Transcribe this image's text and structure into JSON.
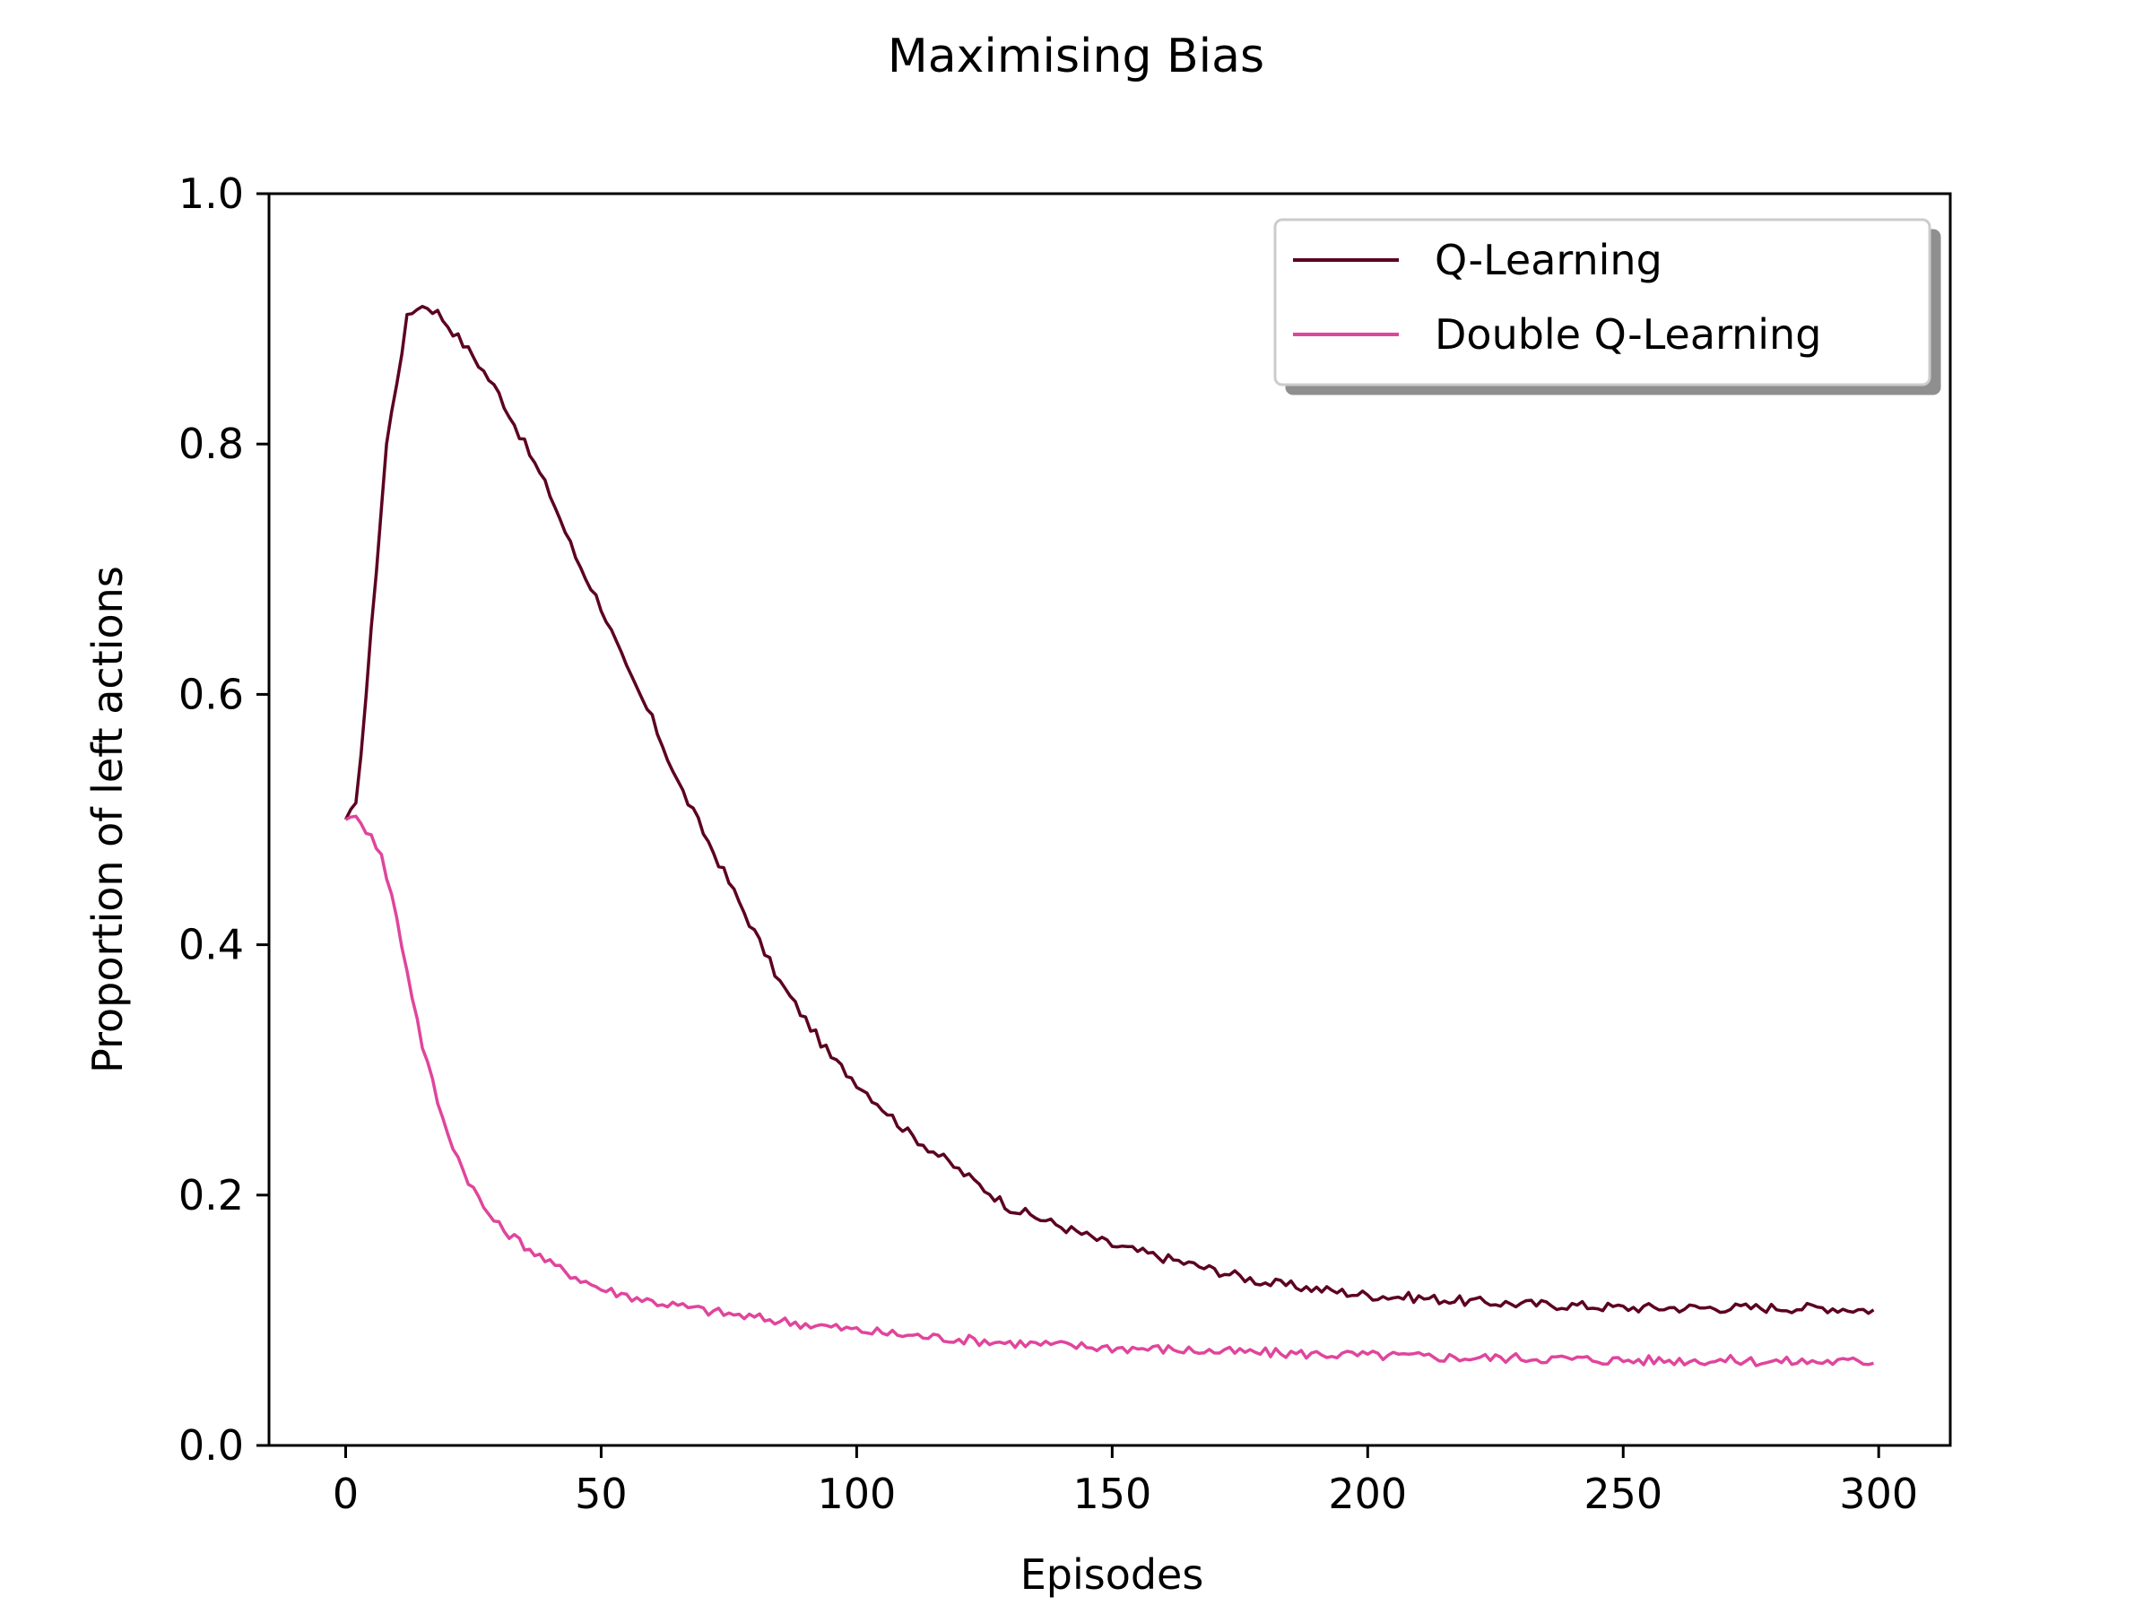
{
  "chart_data": {
    "type": "line",
    "title": "Maximising Bias",
    "xlabel": "Episodes",
    "ylabel": "Proportion of left actions",
    "xlim": [
      -15,
      314
    ],
    "ylim": [
      0.0,
      1.0
    ],
    "xticks": [
      0,
      50,
      100,
      150,
      200,
      250,
      300
    ],
    "xtick_labels": [
      "0",
      "50",
      "100",
      "150",
      "200",
      "250",
      "300"
    ],
    "yticks": [
      0.0,
      0.2,
      0.4,
      0.6,
      0.8,
      1.0
    ],
    "ytick_labels": [
      "0.0",
      "0.2",
      "0.4",
      "0.6",
      "0.8",
      "1.0"
    ],
    "grid": false,
    "legend_position": "top-right",
    "series": [
      {
        "name": "Q-Learning",
        "color": "#5c0120",
        "points": [
          [
            0,
            0.5
          ],
          [
            2,
            0.51
          ],
          [
            4,
            0.6
          ],
          [
            6,
            0.7
          ],
          [
            8,
            0.8
          ],
          [
            10,
            0.85
          ],
          [
            12,
            0.9
          ],
          [
            14,
            0.91
          ],
          [
            16,
            0.91
          ],
          [
            18,
            0.905
          ],
          [
            20,
            0.895
          ],
          [
            25,
            0.87
          ],
          [
            30,
            0.84
          ],
          [
            35,
            0.8
          ],
          [
            40,
            0.76
          ],
          [
            45,
            0.71
          ],
          [
            50,
            0.67
          ],
          [
            55,
            0.62
          ],
          [
            60,
            0.58
          ],
          [
            65,
            0.53
          ],
          [
            70,
            0.49
          ],
          [
            75,
            0.45
          ],
          [
            80,
            0.41
          ],
          [
            85,
            0.37
          ],
          [
            90,
            0.34
          ],
          [
            95,
            0.31
          ],
          [
            100,
            0.29
          ],
          [
            110,
            0.25
          ],
          [
            120,
            0.22
          ],
          [
            130,
            0.19
          ],
          [
            140,
            0.175
          ],
          [
            150,
            0.16
          ],
          [
            160,
            0.15
          ],
          [
            170,
            0.14
          ],
          [
            180,
            0.13
          ],
          [
            190,
            0.125
          ],
          [
            200,
            0.12
          ],
          [
            210,
            0.118
          ],
          [
            220,
            0.115
          ],
          [
            230,
            0.113
          ],
          [
            240,
            0.112
          ],
          [
            250,
            0.11
          ],
          [
            260,
            0.11
          ],
          [
            270,
            0.11
          ],
          [
            280,
            0.11
          ],
          [
            290,
            0.11
          ],
          [
            299,
            0.108
          ]
        ]
      },
      {
        "name": "Double Q-Learning",
        "color": "#e0459c",
        "points": [
          [
            0,
            0.5
          ],
          [
            1,
            0.505
          ],
          [
            3,
            0.495
          ],
          [
            5,
            0.49
          ],
          [
            7,
            0.47
          ],
          [
            9,
            0.44
          ],
          [
            11,
            0.4
          ],
          [
            13,
            0.36
          ],
          [
            15,
            0.32
          ],
          [
            17,
            0.29
          ],
          [
            19,
            0.26
          ],
          [
            21,
            0.24
          ],
          [
            23,
            0.22
          ],
          [
            25,
            0.205
          ],
          [
            27,
            0.19
          ],
          [
            30,
            0.175
          ],
          [
            35,
            0.16
          ],
          [
            40,
            0.145
          ],
          [
            45,
            0.135
          ],
          [
            50,
            0.125
          ],
          [
            55,
            0.12
          ],
          [
            60,
            0.115
          ],
          [
            70,
            0.108
          ],
          [
            80,
            0.102
          ],
          [
            90,
            0.097
          ],
          [
            100,
            0.092
          ],
          [
            110,
            0.088
          ],
          [
            120,
            0.085
          ],
          [
            130,
            0.082
          ],
          [
            140,
            0.08
          ],
          [
            150,
            0.078
          ],
          [
            160,
            0.077
          ],
          [
            170,
            0.075
          ],
          [
            180,
            0.074
          ],
          [
            190,
            0.073
          ],
          [
            200,
            0.072
          ],
          [
            210,
            0.071
          ],
          [
            220,
            0.07
          ],
          [
            230,
            0.07
          ],
          [
            240,
            0.069
          ],
          [
            250,
            0.068
          ],
          [
            260,
            0.068
          ],
          [
            270,
            0.068
          ],
          [
            280,
            0.067
          ],
          [
            290,
            0.067
          ],
          [
            299,
            0.067
          ]
        ]
      }
    ]
  }
}
